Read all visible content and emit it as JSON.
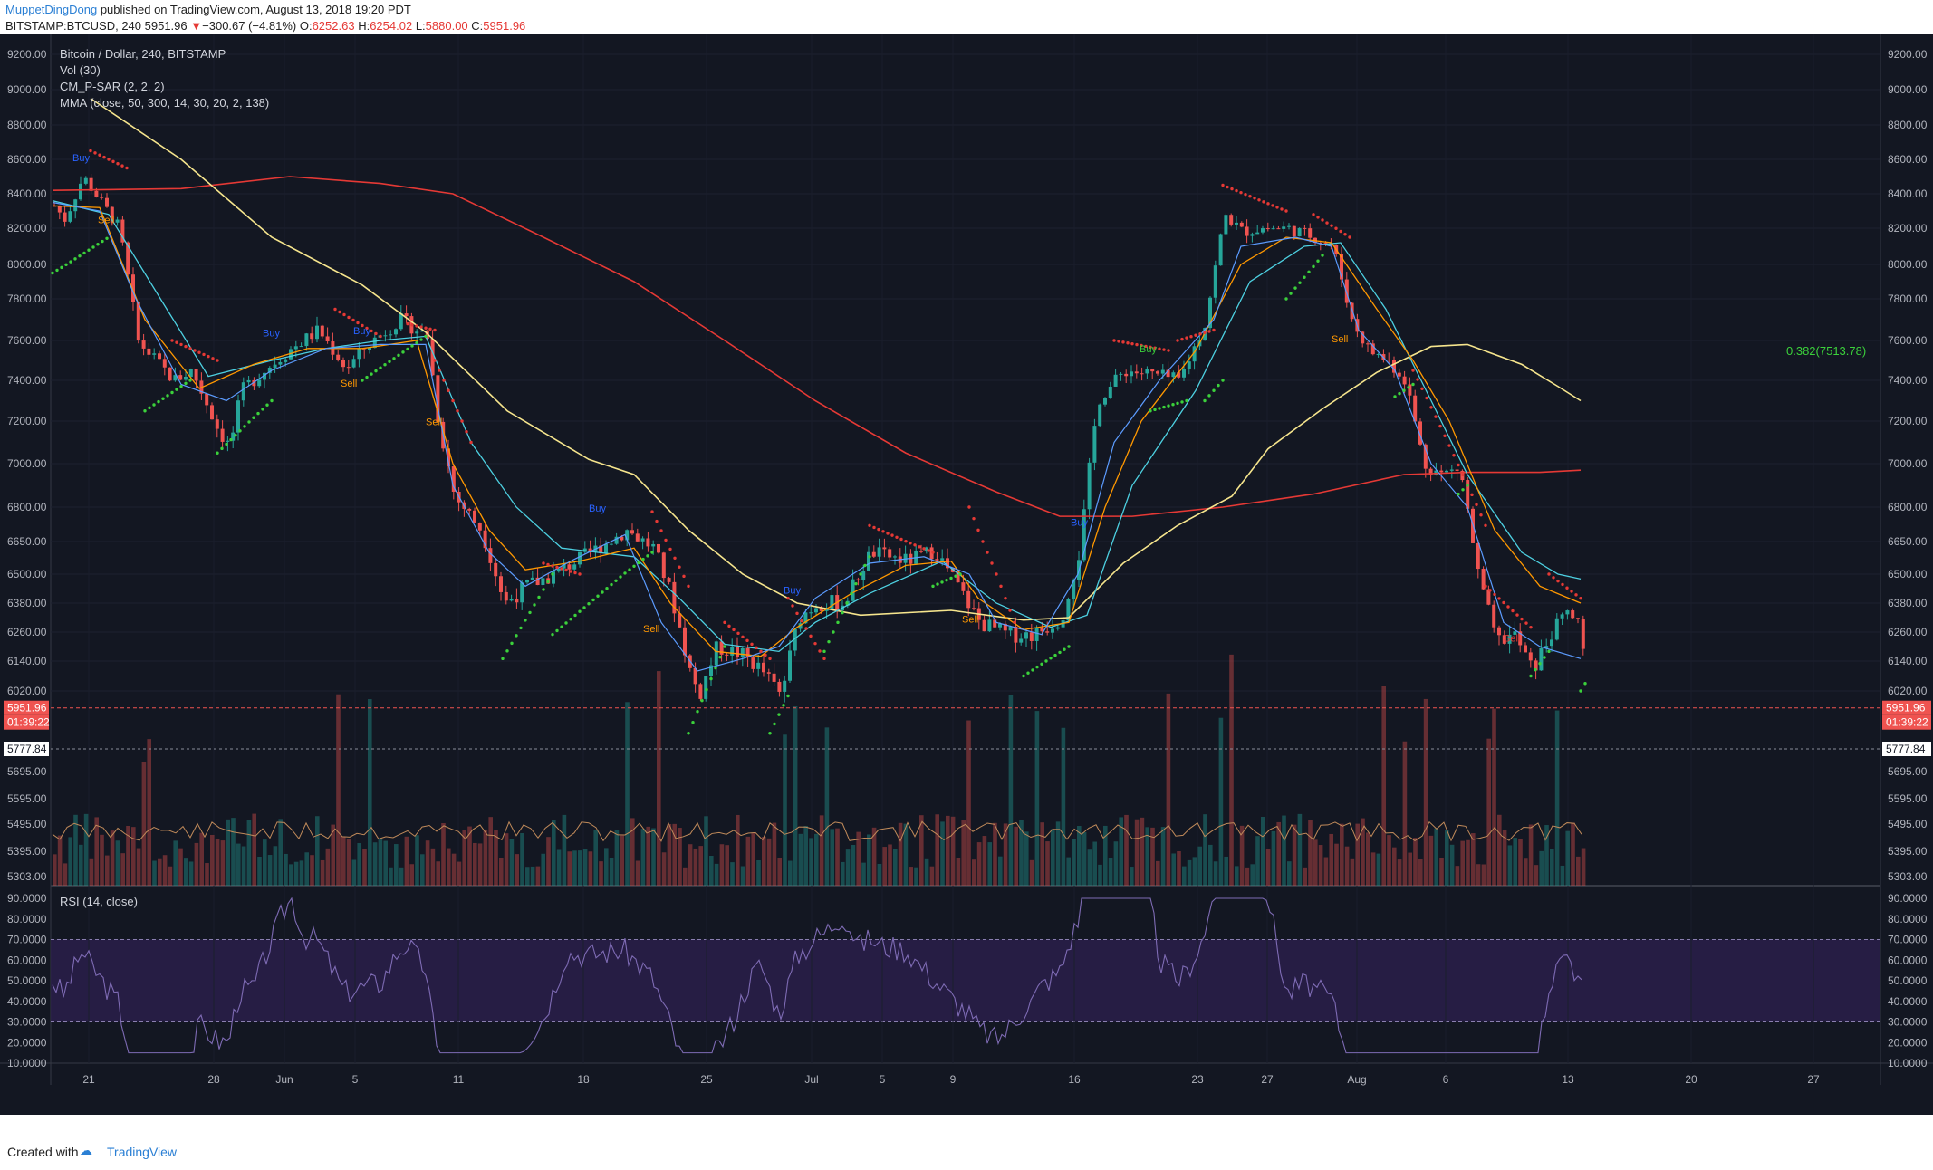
{
  "header": {
    "author": "MuppetDingDong",
    "published": "published on TradingView.com, August 13, 2018 19:20 PDT",
    "symbol": "BITSTAMP:BTCUSD, 240",
    "price": "5951.96",
    "change_arrow": "▼",
    "change": "−300.67 (−4.81%)",
    "o_label": "O:",
    "o_value": "6252.63",
    "h_label": "H:",
    "h_value": "6254.02",
    "l_label": "L:",
    "l_value": "5880.00",
    "c_label": "C:",
    "c_value": "5951.96"
  },
  "legend": {
    "title": "Bitcoin / Dollar, 240, BITSTAMP",
    "vol": "Vol (30)",
    "psar": "CM_P-SAR (2, 2, 2)",
    "mma": "MMA (close, 50, 300, 14, 30, 20, 2, 138)",
    "rsi": "RSI (14, close)"
  },
  "fib_label": "0.382(7513.78)",
  "price_axis": [
    "9200.00",
    "9000.00",
    "8800.00",
    "8600.00",
    "8400.00",
    "8200.00",
    "8000.00",
    "7800.00",
    "7600.00",
    "7400.00",
    "7200.00",
    "7000.00",
    "6800.00",
    "6650.00",
    "6500.00",
    "6380.00",
    "6260.00",
    "6140.00",
    "6020.00"
  ],
  "current_price_label": "5951.96",
  "countdown_label": "01:39:22",
  "low_price_label": "5777.84",
  "volume_axis": [
    "5695.00",
    "5595.00",
    "5495.00",
    "5395.00",
    "5303.00"
  ],
  "rsi_axis": [
    "90.0000",
    "80.0000",
    "70.0000",
    "60.0000",
    "50.0000",
    "40.0000",
    "30.0000",
    "20.0000",
    "10.0000"
  ],
  "time_axis": [
    "21",
    "28",
    "Jun",
    "5",
    "11",
    "18",
    "25",
    "Jul",
    "5",
    "9",
    "16",
    "23",
    "27",
    "Aug",
    "6",
    "13",
    "20",
    "27"
  ],
  "signals": [
    {
      "text": "Buy",
      "kind": "buy"
    },
    {
      "text": "Sell",
      "kind": "sell"
    },
    {
      "text": "Buy",
      "kind": "buy"
    },
    {
      "text": "Buy",
      "kind": "buy"
    },
    {
      "text": "Sell",
      "kind": "sell"
    },
    {
      "text": "Sell",
      "kind": "sell"
    },
    {
      "text": "Buy",
      "kind": "buy"
    },
    {
      "text": "Sell",
      "kind": "sell"
    },
    {
      "text": "Buy",
      "kind": "buy"
    },
    {
      "text": "Sell",
      "kind": "sell"
    },
    {
      "text": "Buy",
      "kind": "buy"
    },
    {
      "text": "Buy",
      "kind": "buy-green"
    },
    {
      "text": "Sell",
      "kind": "sell"
    },
    {
      "text": "Sell",
      "kind": "sell-red"
    }
  ],
  "colors": {
    "background": "#131722",
    "up": "#26a69a",
    "down": "#ef5350",
    "sma_yellow": "#f6e58d",
    "sma_red": "#e53935",
    "ema_orange": "#ff9800",
    "ema_cyan": "#4dd0e1",
    "ema_blue": "#5c9cff",
    "rsi_line": "#7e6bb4",
    "rsi_band": "#2a1e4a"
  },
  "footer": {
    "created": "Created with",
    "brand": "TradingView"
  }
}
